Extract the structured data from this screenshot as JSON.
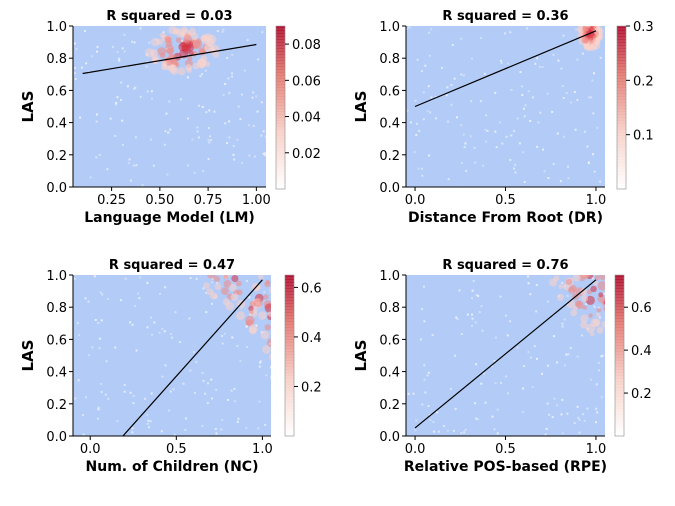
{
  "figure": {
    "palette": {
      "background": "#b2cbf7",
      "density_low": "#ffffff",
      "density_high": "#c8102e",
      "fit_line": "#000000"
    }
  },
  "chart_data": [
    {
      "type": "heatmap",
      "title": "R squared = 0.03",
      "xlabel": "Language Model (LM)",
      "ylabel": "LAS",
      "xlim": [
        0.05,
        1.05
      ],
      "ylim": [
        0.0,
        1.0
      ],
      "xticks": [
        0.25,
        0.5,
        0.75,
        1.0
      ],
      "xtick_labels": [
        "0.25",
        "0.50",
        "0.75",
        "1.00"
      ],
      "yticks": [
        0.0,
        0.2,
        0.4,
        0.6,
        0.8,
        1.0
      ],
      "ytick_labels": [
        "0.0",
        "0.2",
        "0.4",
        "0.6",
        "0.8",
        "1.0"
      ],
      "fit_line": {
        "x": [
          0.1,
          1.0
        ],
        "y": [
          0.705,
          0.885
        ]
      },
      "density_peak": {
        "x": 0.62,
        "y": 0.85
      },
      "colorbar": {
        "min": 0.0,
        "max": 0.09,
        "ticks": [
          0.02,
          0.04,
          0.06,
          0.08
        ],
        "tick_labels": [
          "0.02",
          "0.04",
          "0.06",
          "0.08"
        ]
      },
      "r_squared": 0.03
    },
    {
      "type": "heatmap",
      "title": "R squared = 0.36",
      "xlabel": "Distance From Root (DR)",
      "ylabel": "LAS",
      "xlim": [
        -0.05,
        1.05
      ],
      "ylim": [
        0.0,
        1.0
      ],
      "xticks": [
        0.0,
        0.5,
        1.0
      ],
      "xtick_labels": [
        "0.0",
        "0.5",
        "1.0"
      ],
      "yticks": [
        0.0,
        0.2,
        0.4,
        0.6,
        0.8,
        1.0
      ],
      "ytick_labels": [
        "0.0",
        "0.2",
        "0.4",
        "0.6",
        "0.8",
        "1.0"
      ],
      "fit_line": {
        "x": [
          0.0,
          1.0
        ],
        "y": [
          0.5,
          0.97
        ]
      },
      "density_peak": {
        "x": 0.97,
        "y": 0.95
      },
      "colorbar": {
        "min": 0.0,
        "max": 0.3,
        "ticks": [
          0.1,
          0.2,
          0.3
        ],
        "tick_labels": [
          "0.1",
          "0.2",
          "0.3"
        ]
      },
      "r_squared": 0.36
    },
    {
      "type": "heatmap",
      "title": "R squared = 0.47",
      "xlabel": "Num. of Children (NC)",
      "ylabel": "LAS",
      "xlim": [
        -0.1,
        1.05
      ],
      "ylim": [
        0.0,
        1.0
      ],
      "xticks": [
        0.0,
        0.5,
        1.0
      ],
      "xtick_labels": [
        "0.0",
        "0.5",
        "1.0"
      ],
      "yticks": [
        0.0,
        0.2,
        0.4,
        0.6,
        0.8,
        1.0
      ],
      "ytick_labels": [
        "0.0",
        "0.2",
        "0.4",
        "0.6",
        "0.8",
        "1.0"
      ],
      "fit_line": {
        "x": [
          0.19,
          1.0
        ],
        "y": [
          0.0,
          0.97
        ]
      },
      "density_peak": {
        "x": 0.93,
        "y": 0.88
      },
      "colorbar": {
        "min": 0.0,
        "max": 0.65,
        "ticks": [
          0.2,
          0.4,
          0.6
        ],
        "tick_labels": [
          "0.2",
          "0.4",
          "0.6"
        ]
      },
      "r_squared": 0.47
    },
    {
      "type": "heatmap",
      "title": "R squared = 0.76",
      "xlabel": "Relative POS-based (RPE)",
      "ylabel": "LAS",
      "xlim": [
        -0.05,
        1.05
      ],
      "ylim": [
        0.0,
        1.0
      ],
      "xticks": [
        0.0,
        0.5,
        1.0
      ],
      "xtick_labels": [
        "0.0",
        "0.5",
        "1.0"
      ],
      "yticks": [
        0.0,
        0.2,
        0.4,
        0.6,
        0.8,
        1.0
      ],
      "ytick_labels": [
        "0.0",
        "0.2",
        "0.4",
        "0.6",
        "0.8",
        "1.0"
      ],
      "fit_line": {
        "x": [
          0.0,
          1.0
        ],
        "y": [
          0.05,
          0.97
        ]
      },
      "density_peak": {
        "x": 0.95,
        "y": 0.94
      },
      "colorbar": {
        "min": 0.0,
        "max": 0.75,
        "ticks": [
          0.2,
          0.4,
          0.6
        ],
        "tick_labels": [
          "0.2",
          "0.4",
          "0.6"
        ]
      },
      "r_squared": 0.76
    }
  ]
}
